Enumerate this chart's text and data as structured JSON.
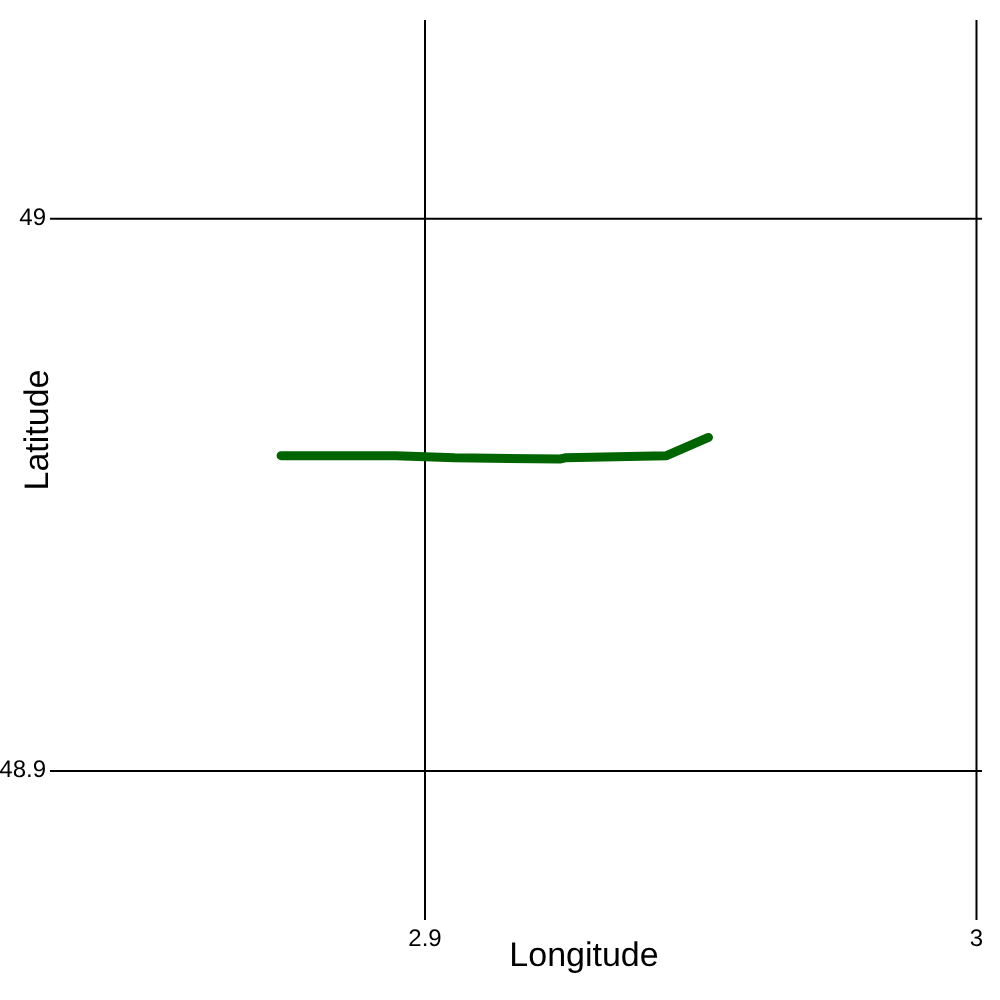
{
  "chart_data": {
    "type": "line",
    "xlabel": "Longitude",
    "ylabel": "Latitude",
    "xlim": [
      2.832,
      3.001
    ],
    "ylim": [
      48.873,
      49.036
    ],
    "xticks": [
      2.9,
      3
    ],
    "yticks": [
      48.9,
      49
    ],
    "grid": true,
    "marker": "none",
    "line_style": "solid",
    "series": [
      {
        "color": "#006400",
        "x": [
          2.8739,
          2.8946,
          2.9,
          2.9054,
          2.9246,
          2.9254,
          2.9438,
          2.9514
        ],
        "values": [
          48.9571,
          48.9571,
          48.9569,
          48.9567,
          48.9565,
          48.9567,
          48.9571,
          48.9604
        ]
      }
    ]
  }
}
